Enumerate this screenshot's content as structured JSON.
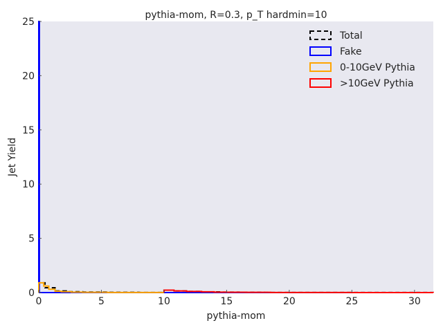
{
  "chart_data": {
    "type": "step-histogram",
    "title": "pythia-mom, R=0.3, p_T hardmin=10",
    "xlabel": "pythia-mom",
    "ylabel": "Jet Yield",
    "xlim": [
      0,
      31.5
    ],
    "ylim": [
      0,
      25
    ],
    "xticks": [
      0,
      5,
      10,
      15,
      20,
      25,
      30
    ],
    "yticks": [
      0,
      5,
      10,
      15,
      20,
      25
    ],
    "background": "#e8e8f0",
    "grid": false,
    "legend_position": "top-right",
    "series": [
      {
        "name": "Total",
        "color": "#000000",
        "style": "dashed",
        "bins": [
          0,
          0.5,
          1.3,
          2.2,
          3.5,
          5.5,
          8,
          10,
          10.8,
          11.8,
          13,
          14.5,
          16,
          18,
          21,
          31.5
        ],
        "values": [
          0.9,
          0.45,
          0.15,
          0.08,
          0.05,
          0.02,
          0.01,
          0.22,
          0.15,
          0.1,
          0.06,
          0.04,
          0.02,
          0.01,
          0.005
        ]
      },
      {
        "name": "Fake",
        "color": "#0000ff",
        "style": "solid",
        "bins": [
          0,
          0.05,
          31.5
        ],
        "values": [
          25,
          0
        ]
      },
      {
        "name": "0-10GeV Pythia",
        "color": "#ffa500",
        "style": "solid",
        "bins": [
          0,
          0.4,
          0.8,
          1.3,
          1.8,
          2.6,
          3.5,
          5.5,
          10
        ],
        "values": [
          0.9,
          0.6,
          0.3,
          0.12,
          0.08,
          0.04,
          0.02,
          0.005
        ]
      },
      {
        "name": ">10GeV Pythia",
        "color": "#ff0000",
        "style": "solid",
        "bins": [
          10,
          10.8,
          11.8,
          13,
          14,
          15,
          16.5,
          18.5,
          21,
          25,
          31.5
        ],
        "values": [
          0.22,
          0.15,
          0.1,
          0.07,
          0.04,
          0.03,
          0.02,
          0.01,
          0.005,
          0.002
        ]
      }
    ]
  }
}
